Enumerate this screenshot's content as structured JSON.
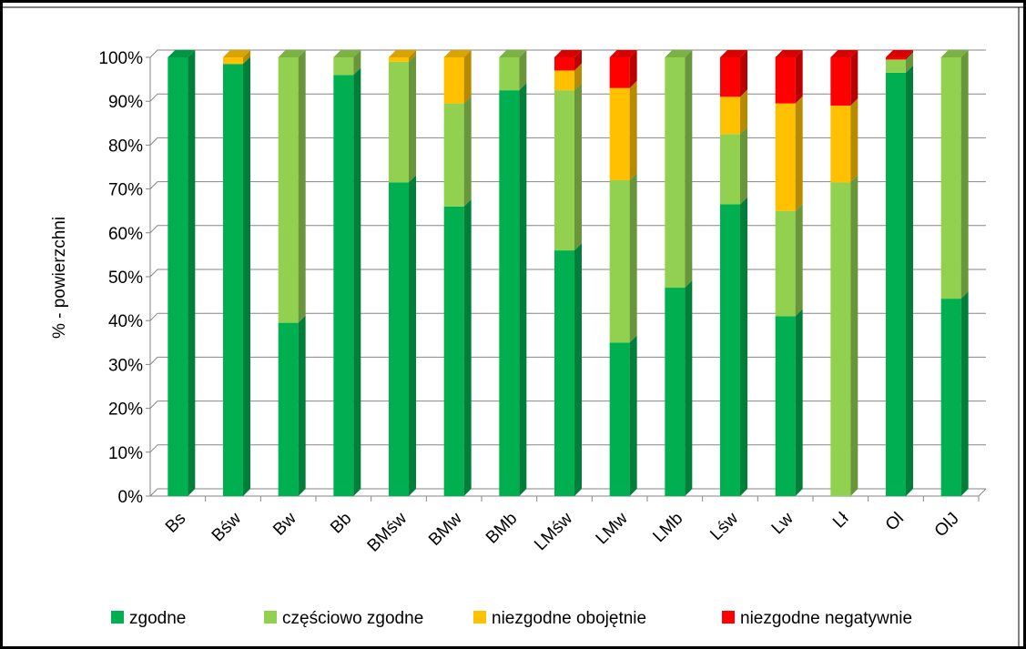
{
  "chart_data": {
    "type": "stacked_bar_3d",
    "y_axis_label": "% - powierzchni",
    "categories": [
      "Bs",
      "Bśw",
      "Bw",
      "Bb",
      "BMśw",
      "BMw",
      "BMb",
      "LMśw",
      "LMw",
      "LMb",
      "Lśw",
      "Lw",
      "Lł",
      "Ol",
      "OlJ"
    ],
    "series": [
      {
        "name": "zgodne",
        "color": "#00b050",
        "values": [
          100,
          98.5,
          39.5,
          96,
          71.5,
          66,
          92.5,
          56,
          35,
          47.5,
          66.5,
          41,
          0,
          96.5,
          45
        ]
      },
      {
        "name": "częściowo zgodne",
        "color": "#92d050",
        "values": [
          0,
          0,
          60.5,
          4,
          27.5,
          23.5,
          7.5,
          36.5,
          37,
          52.5,
          16,
          24,
          71.5,
          3,
          55
        ]
      },
      {
        "name": "niezgodne obojętnie",
        "color": "#ffc000",
        "values": [
          0,
          1.5,
          0,
          0,
          1,
          10.5,
          0,
          4.5,
          21,
          0,
          8.5,
          24.5,
          17.5,
          0,
          0
        ]
      },
      {
        "name": "niezgodne negatywnie",
        "color": "#ff0000",
        "values": [
          0,
          0,
          0,
          0,
          0,
          0,
          0,
          3,
          7,
          0,
          9,
          10.5,
          11,
          0.5,
          0
        ]
      }
    ],
    "ylim": [
      0,
      100
    ],
    "yticks": [
      {
        "value": 0,
        "label": "0%"
      },
      {
        "value": 10,
        "label": "10%"
      },
      {
        "value": 20,
        "label": "20%"
      },
      {
        "value": 30,
        "label": "30%"
      },
      {
        "value": 40,
        "label": "40%"
      },
      {
        "value": 50,
        "label": "50%"
      },
      {
        "value": 60,
        "label": "60%"
      },
      {
        "value": 70,
        "label": "70%"
      },
      {
        "value": 80,
        "label": "80%"
      },
      {
        "value": 90,
        "label": "90%"
      },
      {
        "value": 100,
        "label": "100%"
      }
    ],
    "grid": true,
    "legend": "bottom"
  }
}
